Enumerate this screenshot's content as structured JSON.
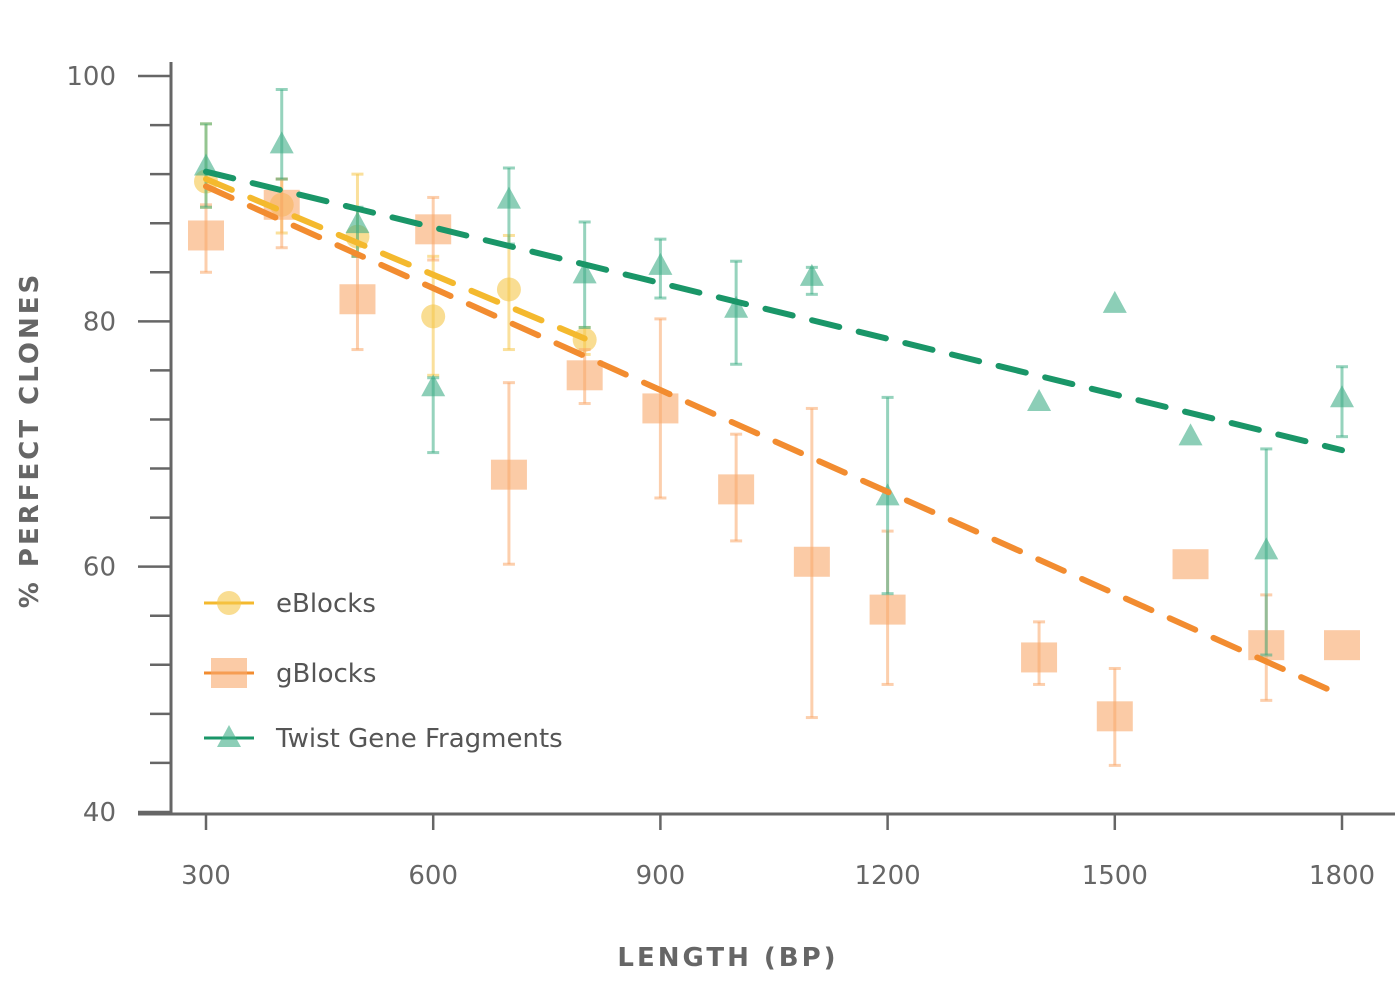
{
  "chart_data": {
    "type": "scatter",
    "title": "",
    "xlabel": "LENGTH (BP)",
    "ylabel": "% PERFECT CLONES",
    "xlim": [
      255,
      1870
    ],
    "ylim": [
      40,
      100
    ],
    "xticks": [
      "300",
      "600",
      "900",
      "1200",
      "1500",
      "1800"
    ],
    "yticks": [
      "40",
      "60",
      "80",
      "100"
    ],
    "grid": false,
    "legend_position": "bottom-left",
    "series": [
      {
        "name": "eBlocks",
        "marker": "circle",
        "color": "#f5c64a",
        "line_color": "#f4b92e",
        "points": [
          {
            "x": 300,
            "y": 91.4,
            "lo": 89.3,
            "hi": 96.1
          },
          {
            "x": 400,
            "y": 89.5,
            "lo": 87.2,
            "hi": 91.6
          },
          {
            "x": 500,
            "y": 86.9,
            "lo": 85.3,
            "hi": 92.0
          },
          {
            "x": 600,
            "y": 80.4,
            "lo": 75.6,
            "hi": 85.3
          },
          {
            "x": 700,
            "y": 82.6,
            "lo": 77.7,
            "hi": 87.0
          },
          {
            "x": 800,
            "y": 78.5,
            "lo": 77.3,
            "hi": 79.5
          }
        ],
        "trend": [
          [
            300,
            91.6
          ],
          [
            800,
            78.6
          ]
        ]
      },
      {
        "name": "gBlocks",
        "marker": "square",
        "color": "#f9a86a",
        "line_color": "#f28c30",
        "points": [
          {
            "x": 300,
            "y": 87.0,
            "lo": 84.0,
            "hi": 89.5
          },
          {
            "x": 400,
            "y": 89.5,
            "lo": 86.0,
            "hi": 91.6
          },
          {
            "x": 500,
            "y": 81.8,
            "lo": 77.7,
            "hi": 85.3
          },
          {
            "x": 600,
            "y": 87.5,
            "lo": 85.0,
            "hi": 90.1
          },
          {
            "x": 700,
            "y": 67.5,
            "lo": 60.2,
            "hi": 75.0
          },
          {
            "x": 800,
            "y": 75.6,
            "lo": 73.3,
            "hi": 77.7
          },
          {
            "x": 900,
            "y": 72.9,
            "lo": 65.6,
            "hi": 80.2
          },
          {
            "x": 1000,
            "y": 66.3,
            "lo": 62.1,
            "hi": 70.8
          },
          {
            "x": 1100,
            "y": 60.4,
            "lo": 47.7,
            "hi": 72.9
          },
          {
            "x": 1200,
            "y": 56.5,
            "lo": 50.4,
            "hi": 62.9
          },
          {
            "x": 1400,
            "y": 52.6,
            "lo": 50.4,
            "hi": 55.5
          },
          {
            "x": 1500,
            "y": 47.8,
            "lo": 43.8,
            "hi": 51.7
          },
          {
            "x": 1600,
            "y": 60.2
          },
          {
            "x": 1700,
            "y": 53.6,
            "lo": 49.1,
            "hi": 57.7
          },
          {
            "x": 1800,
            "y": 53.6
          }
        ],
        "trend": [
          [
            300,
            91.0
          ],
          [
            1800,
            49.5
          ]
        ]
      },
      {
        "name": "Twist Gene Fragments",
        "marker": "triangle",
        "color": "#3fae87",
        "line_color": "#1a9668",
        "points": [
          {
            "x": 300,
            "y": 92.3,
            "lo": 89.3,
            "hi": 96.1
          },
          {
            "x": 400,
            "y": 94.1,
            "lo": 91.6,
            "hi": 98.9
          },
          {
            "x": 500,
            "y": 87.6,
            "lo": 85.3,
            "hi": 89.3
          },
          {
            "x": 600,
            "y": 74.3,
            "lo": 69.3,
            "hi": 75.4
          },
          {
            "x": 700,
            "y": 89.6,
            "lo": 86.3,
            "hi": 92.5
          },
          {
            "x": 800,
            "y": 83.5,
            "lo": 79.5,
            "hi": 88.1
          },
          {
            "x": 900,
            "y": 84.2,
            "lo": 81.9,
            "hi": 86.7
          },
          {
            "x": 1000,
            "y": 80.7,
            "lo": 76.5,
            "hi": 84.9
          },
          {
            "x": 1100,
            "y": 83.3,
            "lo": 82.2,
            "hi": 84.4
          },
          {
            "x": 1200,
            "y": 65.4,
            "lo": 57.8,
            "hi": 73.8
          },
          {
            "x": 1400,
            "y": 73.1
          },
          {
            "x": 1500,
            "y": 81.1
          },
          {
            "x": 1600,
            "y": 70.3
          },
          {
            "x": 1700,
            "y": 61.0,
            "lo": 52.8,
            "hi": 69.6
          },
          {
            "x": 1800,
            "y": 73.4,
            "lo": 70.6,
            "hi": 76.3
          }
        ],
        "trend": [
          [
            300,
            92.2
          ],
          [
            1800,
            69.5
          ]
        ]
      }
    ]
  }
}
